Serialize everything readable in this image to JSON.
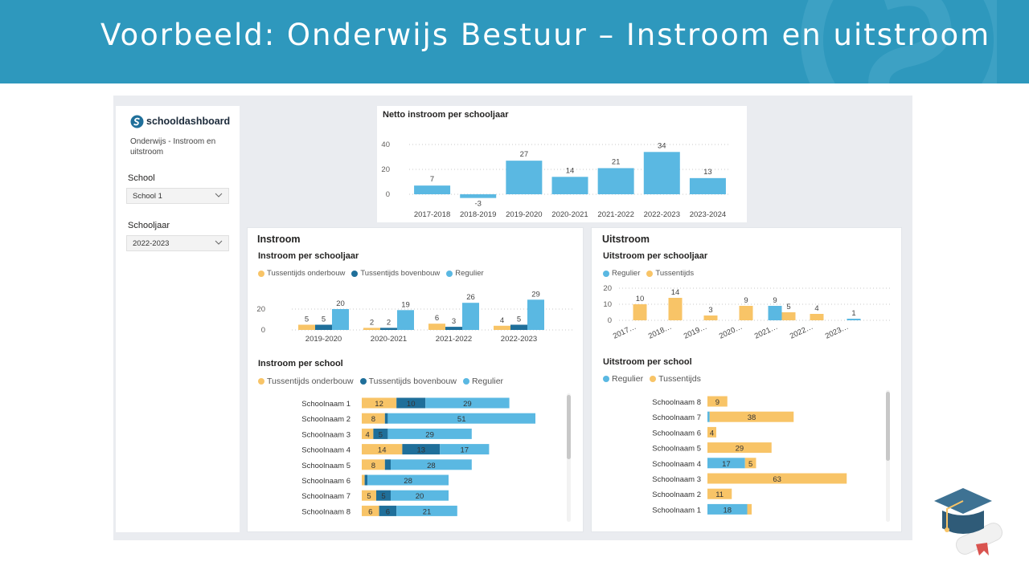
{
  "banner": {
    "title": "Voorbeeld: Onderwijs Bestuur – Instroom en uitstroom"
  },
  "colors": {
    "banner": "#2e98bd",
    "blue": "#5ab8e2",
    "darkblue": "#1f6f9a",
    "yellow": "#f8c467"
  },
  "sidebar": {
    "logo_text": "schooldashboard",
    "subtitle": "Onderwijs - Instroom en uitstroom",
    "school_label": "School",
    "school_value": "School 1",
    "year_label": "Schooljaar",
    "year_value": "2022-2023"
  },
  "netto": {
    "title": "Netto instroom per schooljaar",
    "chart_data": {
      "type": "bar",
      "categories": [
        "2017-2018",
        "2018-2019",
        "2019-2020",
        "2020-2021",
        "2021-2022",
        "2022-2023",
        "2023-2024"
      ],
      "values": [
        7,
        -3,
        27,
        14,
        21,
        34,
        13
      ],
      "yticks": [
        "40",
        "20",
        "0"
      ],
      "ylim": [
        -5,
        40
      ]
    }
  },
  "instroom": {
    "section_title": "Instroom",
    "year_chart": {
      "title": "Instroom per schooljaar",
      "legend": [
        "Tussentijds onderbouw",
        "Tussentijds bovenbouw",
        "Regulier"
      ],
      "chart_data": {
        "type": "bar",
        "categories": [
          "2019-2020",
          "2020-2021",
          "2021-2022",
          "2022-2023"
        ],
        "series": [
          {
            "name": "Tussentijds onderbouw",
            "values": [
              5,
              2,
              6,
              4
            ]
          },
          {
            "name": "Tussentijds bovenbouw",
            "values": [
              5,
              2,
              3,
              5
            ]
          },
          {
            "name": "Regulier",
            "values": [
              20,
              19,
              26,
              29
            ]
          }
        ],
        "yticks": [
          "20",
          "0"
        ],
        "ylim": [
          0,
          30
        ]
      }
    },
    "school_chart": {
      "title": "Instroom per school",
      "legend": [
        "Tussentijds onderbouw",
        "Tussentijds bovenbouw",
        "Regulier"
      ],
      "chart_data": {
        "type": "bar",
        "categories": [
          "Schoolnaam 1",
          "Schoolnaam 2",
          "Schoolnaam 3",
          "Schoolnaam 4",
          "Schoolnaam 5",
          "Schoolnaam 6",
          "Schoolnaam 7",
          "Schoolnaam 8"
        ],
        "series": [
          {
            "name": "Tussentijds onderbouw",
            "values": [
              12,
              8,
              4,
              14,
              8,
              1,
              5,
              6
            ]
          },
          {
            "name": "Tussentijds bovenbouw",
            "values": [
              10,
              1,
              5,
              13,
              2,
              1,
              5,
              6
            ]
          },
          {
            "name": "Regulier",
            "values": [
              29,
              51,
              29,
              17,
              28,
              28,
              20,
              21
            ]
          }
        ],
        "labels": [
          [
            "12",
            "10",
            "29"
          ],
          [
            "8",
            "",
            "51"
          ],
          [
            "4",
            "5",
            "29"
          ],
          [
            "14",
            "13",
            "17"
          ],
          [
            "8",
            "",
            "28"
          ],
          [
            "",
            "",
            "28"
          ],
          [
            "5",
            "5",
            "20"
          ],
          [
            "6",
            "6",
            "21"
          ]
        ]
      }
    }
  },
  "uitstroom": {
    "section_title": "Uitstroom",
    "year_chart": {
      "title": "Uitstroom per schooljaar",
      "legend": [
        "Regulier",
        "Tussentijds"
      ],
      "chart_data": {
        "type": "bar",
        "categories": [
          "2017…",
          "2018…",
          "2019…",
          "2020…",
          "2021…",
          "2022…",
          "2023…"
        ],
        "series": [
          {
            "name": "Regulier",
            "values": [
              0,
              0,
              0,
              0,
              9,
              0,
              1
            ]
          },
          {
            "name": "Tussentijds",
            "values": [
              10,
              14,
              3,
              9,
              5,
              4,
              0
            ]
          }
        ],
        "labels": [
          "10",
          "14",
          "3",
          "9",
          "9",
          "5",
          "4",
          "1"
        ],
        "yticks": [
          "20",
          "10",
          "0"
        ],
        "ylim": [
          0,
          20
        ]
      }
    },
    "school_chart": {
      "title": "Uitstroom per school",
      "legend": [
        "Regulier",
        "Tussentijds"
      ],
      "chart_data": {
        "type": "bar",
        "categories": [
          "Schoolnaam 8",
          "Schoolnaam 7",
          "Schoolnaam 6",
          "Schoolnaam 5",
          "Schoolnaam 4",
          "Schoolnaam 3",
          "Schoolnaam 2",
          "Schoolnaam 1"
        ],
        "series": [
          {
            "name": "Regulier",
            "values": [
              0,
              1,
              0,
              0,
              17,
              0,
              0,
              18
            ]
          },
          {
            "name": "Tussentijds",
            "values": [
              9,
              38,
              4,
              29,
              5,
              63,
              11,
              2
            ]
          }
        ],
        "labels": [
          [
            "",
            "9"
          ],
          [
            "",
            "38"
          ],
          [
            "",
            "4"
          ],
          [
            "",
            "29"
          ],
          [
            "17",
            "5"
          ],
          [
            "",
            "63"
          ],
          [
            "",
            "11"
          ],
          [
            "18",
            ""
          ]
        ]
      }
    }
  }
}
